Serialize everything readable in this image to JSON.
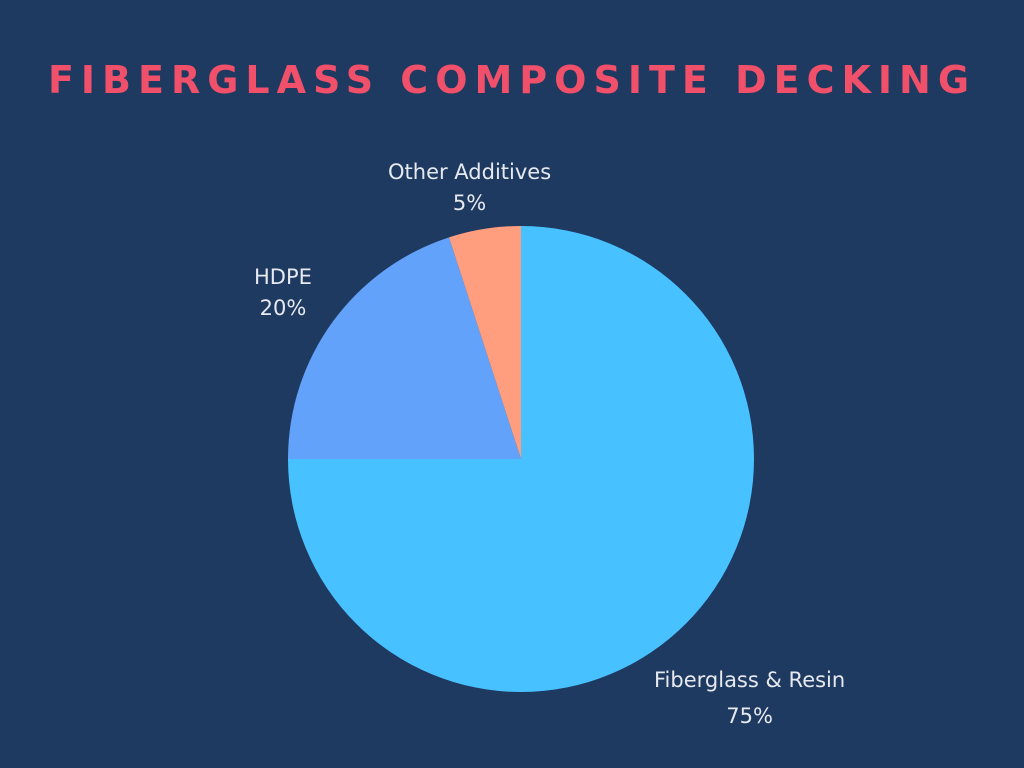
{
  "chart_data": {
    "type": "pie",
    "title": "FIBERGLASS COMPOSITE DECKING",
    "categories": [
      "Fiberglass & Resin",
      "HDPE",
      "Other Additives"
    ],
    "values": [
      75,
      20,
      5
    ],
    "value_labels": [
      "75%",
      "20%",
      "5%"
    ],
    "unit": "%",
    "colors": [
      "#47c1ff",
      "#62a2fa",
      "#fe9e7f"
    ],
    "start_angle": "12 o'clock",
    "direction": "clockwise",
    "legend": "none",
    "labels": "outside slices"
  },
  "colors": {
    "background": "#1f3a60",
    "title": "#f0506a",
    "label_text": "#e6e9ef"
  }
}
